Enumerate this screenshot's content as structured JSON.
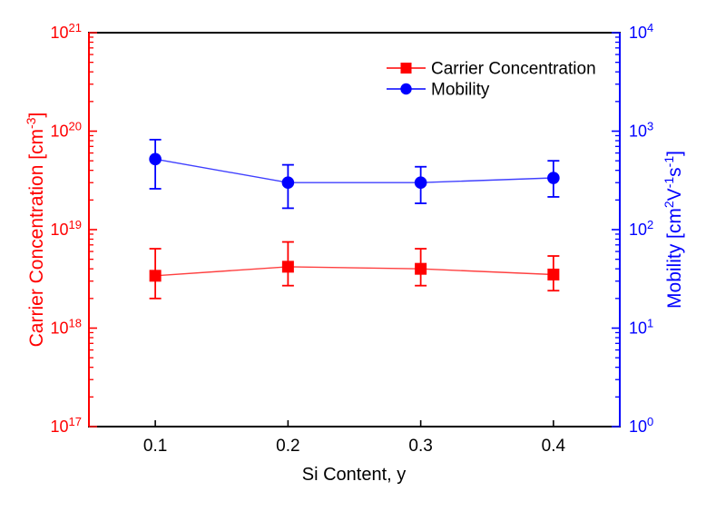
{
  "figure": {
    "background": "#ffffff",
    "frame_color": "#000000"
  },
  "chart_data": {
    "type": "line",
    "title": "",
    "xlabel": "Si Content, y",
    "x": [
      0.1,
      0.2,
      0.3,
      0.4
    ],
    "xlim": [
      0.05,
      0.45
    ],
    "x_tick_labels": [
      "0.1",
      "0.2",
      "0.3",
      "0.4"
    ],
    "grid": false,
    "left_axis": {
      "label": "Carrier Concentration [cm⁻³]",
      "label_parts": [
        {
          "t": "Carrier Concentration [cm"
        },
        {
          "t": "-3",
          "sup": true
        },
        {
          "t": "]"
        }
      ],
      "scale": "log",
      "lim": [
        1e+17,
        1e+21
      ],
      "tick_exponents": [
        17,
        18,
        19,
        20,
        21
      ],
      "color": "#ff0000"
    },
    "right_axis": {
      "label": "Mobility [cm²V⁻¹s⁻¹]",
      "label_parts": [
        {
          "t": "Mobility [cm"
        },
        {
          "t": "2",
          "sup": true
        },
        {
          "t": "V"
        },
        {
          "t": "-1",
          "sup": true
        },
        {
          "t": "s"
        },
        {
          "t": "-1",
          "sup": true
        },
        {
          "t": "]"
        }
      ],
      "scale": "log",
      "lim": [
        1,
        10000
      ],
      "tick_exponents": [
        0,
        1,
        2,
        3,
        4
      ],
      "color": "#0000ff"
    },
    "series": [
      {
        "name": "Carrier Concentration",
        "axis": "left",
        "marker": "square",
        "color": "#ff0000",
        "line_color": "#ff4040",
        "values": [
          3.4e+18,
          4.2e+18,
          4e+18,
          3.5e+18
        ],
        "err_low": [
          2e+18,
          2.7e+18,
          2.7e+18,
          2.4e+18
        ],
        "err_high": [
          6.4e+18,
          7.5e+18,
          6.4e+18,
          5.4e+18
        ]
      },
      {
        "name": "Mobility",
        "axis": "right",
        "marker": "circle",
        "color": "#0000ff",
        "line_color": "#4040ff",
        "values": [
          520,
          300,
          300,
          335
        ],
        "err_low": [
          260,
          165,
          185,
          215
        ],
        "err_high": [
          820,
          455,
          435,
          500
        ]
      }
    ],
    "legend": {
      "position": "upper-right-inside",
      "items": [
        "Carrier Concentration",
        "Mobility"
      ]
    }
  }
}
